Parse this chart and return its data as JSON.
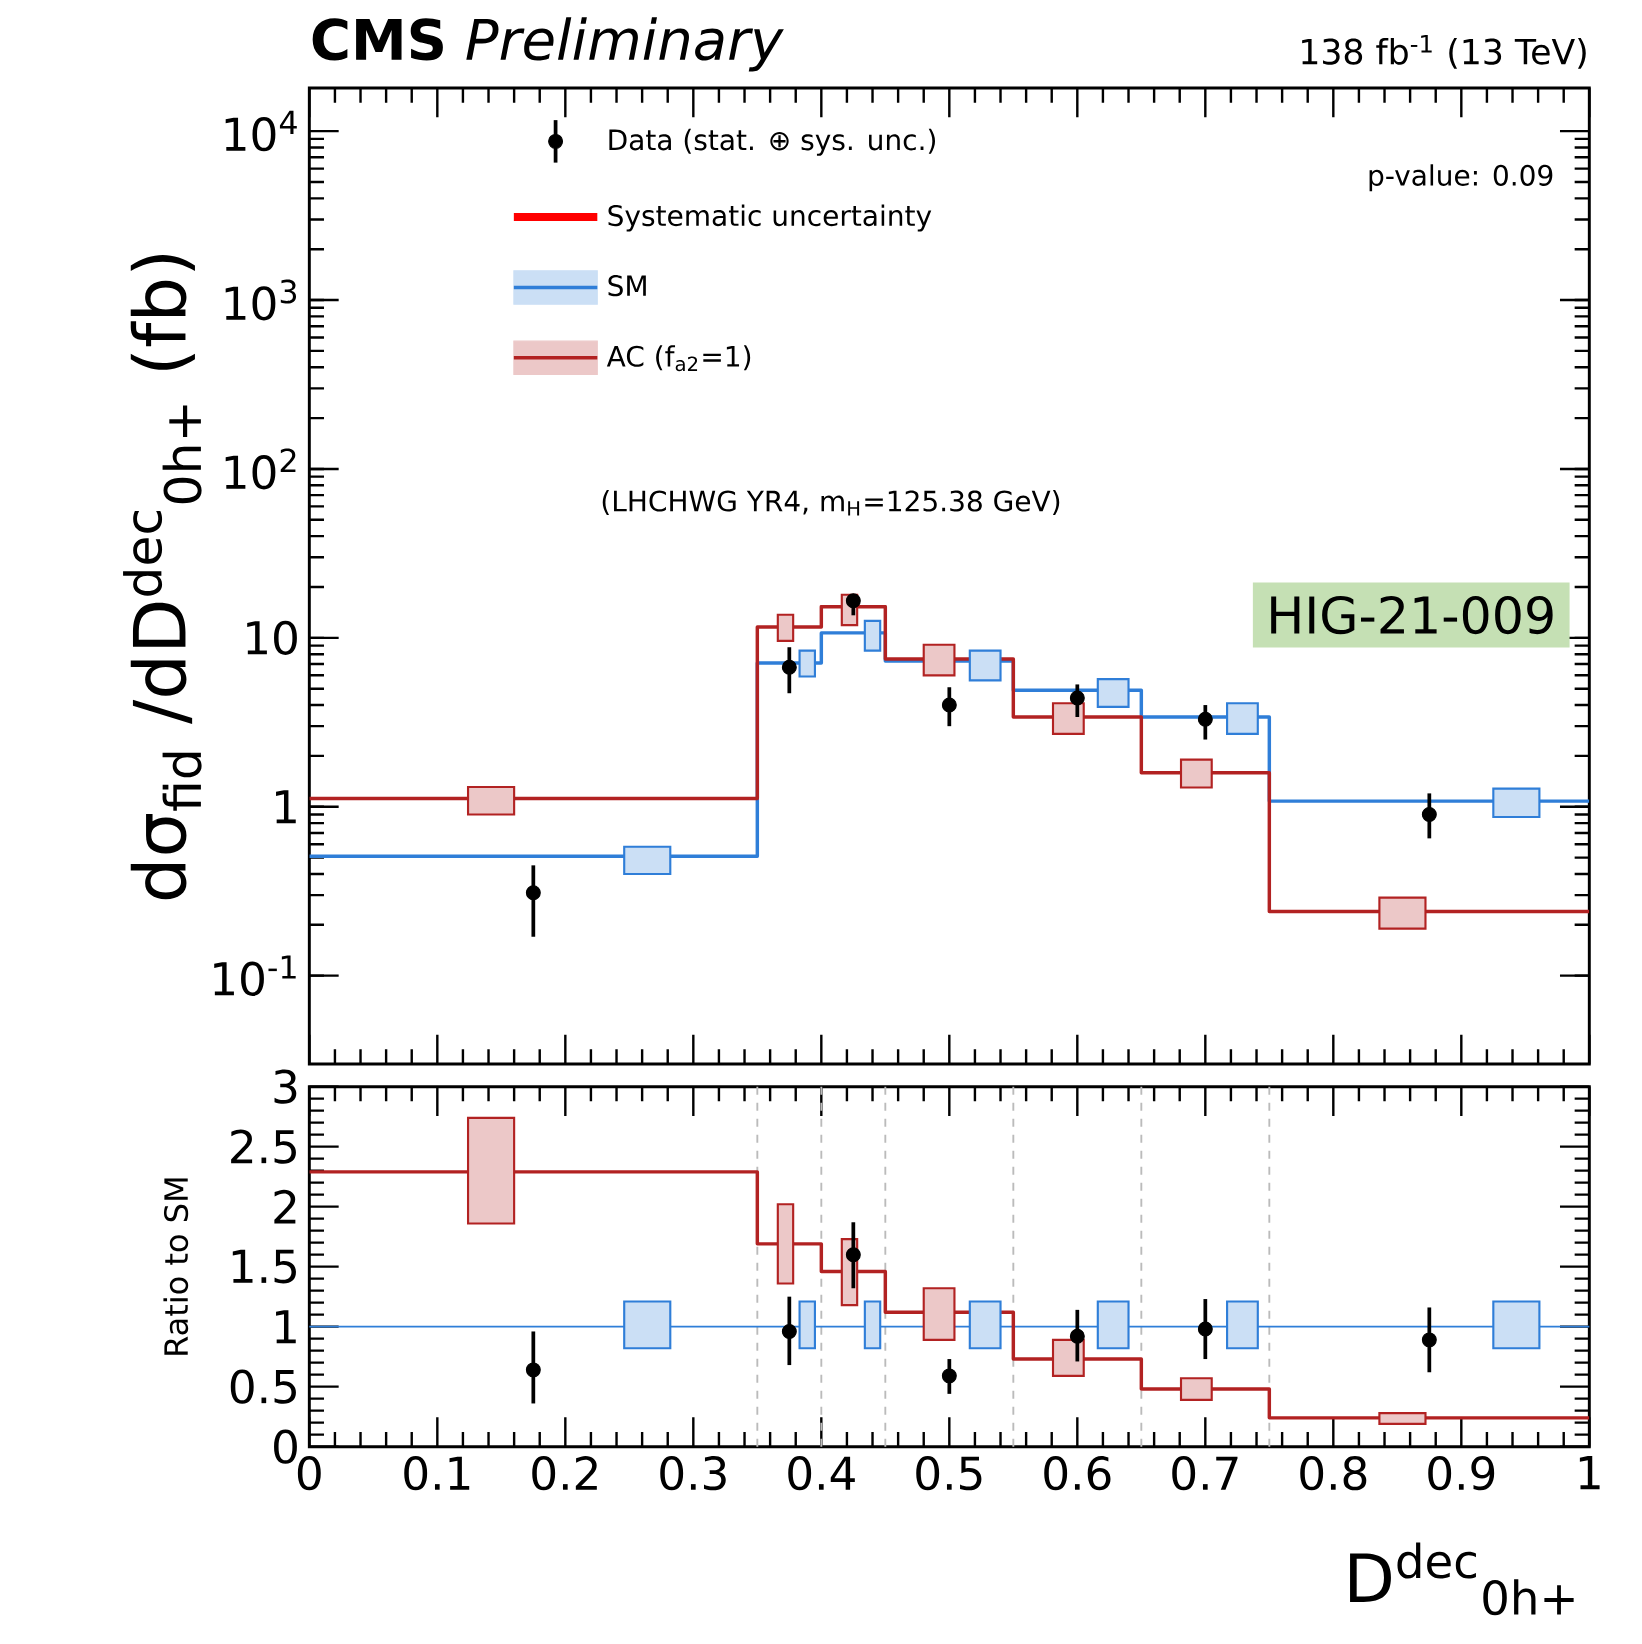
{
  "chart_data": [
    {
      "type": "step",
      "title": "**CMS** *Preliminary*",
      "subtitle": "138 fb$^{-1}$ (13 TeV)",
      "ylabel": "dσ$_{fid}$ /dD$^{dec}$$_{0h+}$ (fb)",
      "annotations": [
        "p-value: 0.09",
        "Systematic uncertainty",
        "(LHCHWG YR4, m$_{H}$=125.38 GeV)",
        "HIG-21-009"
      ],
      "log": "y",
      "legend": "top",
      "tick_labels": "y",
      "xlim": [
        0,
        1
      ],
      "xticks": [
        0,
        0.1,
        0.2,
        0.3,
        0.4,
        0.5,
        0.6,
        0.7,
        0.8,
        0.9,
        1
      ],
      "ylim": [
        0.03,
        18000
      ],
      "yticks": [
        {
          "value": 0.1,
          "label": "10$^{-1}$"
        },
        1,
        10,
        {
          "value": 100,
          "label": "10$^{2}$"
        },
        {
          "value": 1000,
          "label": "10$^{3}$"
        },
        {
          "value": 10000,
          "label": "10$^{4}$"
        }
      ],
      "series": [
        {
          "type": "scatter",
          "name": "Data (stat. ⊕ sys. unc.)",
          "color": "#000000",
          "marker": "circle",
          "x": [
            0.175,
            0.375,
            0.425,
            0.5,
            0.6,
            0.7,
            0.875
          ],
          "values": [
            0.31,
            6.7,
            16.6,
            4.0,
            4.4,
            3.3,
            0.9
          ],
          "errors": [
            [
              0.17,
              0.45
            ],
            [
              4.7,
              8.8
            ],
            [
              13.6,
              18
            ],
            [
              3.0,
              5.1
            ],
            [
              3.4,
              5.3
            ],
            [
              2.5,
              4.0
            ],
            [
              0.65,
              1.2
            ]
          ]
        },
        {
          "name": "SM",
          "color": "#2f7ed8",
          "x": [
            0,
            0.35,
            0.4,
            0.45,
            0.55,
            0.65,
            0.75,
            1
          ],
          "values": [
            0.51,
            7.1,
            10.7,
            7.3,
            4.9,
            3.4,
            1.08,
            1.08
          ]
        },
        {
          "name": "AC (f$_{a2}$=1)",
          "color": "#b22222",
          "x": [
            0,
            0.35,
            0.4,
            0.45,
            0.55,
            0.65,
            0.75,
            1
          ],
          "values": [
            1.12,
            11.6,
            15.3,
            7.5,
            3.4,
            1.59,
            0.24,
            0.24
          ]
        },
        {
          "type": "bar",
          "color": "#2f7ed8",
          "x": [
            0.264,
            0.389,
            0.44,
            0.528,
            0.628,
            0.729,
            0.943
          ],
          "base": [
            0.4,
            5.9,
            8.4,
            5.6,
            3.9,
            2.7,
            0.87
          ],
          "values": [
            0.18,
            2.5,
            4.2,
            2.8,
            1.8,
            1.4,
            0.41
          ]
        },
        {
          "type": "bar",
          "color": "#b22222",
          "x": [
            0.142,
            0.372,
            0.422,
            0.492,
            0.593,
            0.693,
            0.854
          ],
          "base": [
            0.9,
            9.6,
            11.9,
            6.0,
            2.7,
            1.3,
            0.19
          ],
          "values": [
            0.41,
            4.1,
            6.1,
            3.1,
            1.4,
            0.6,
            0.1
          ]
        }
      ]
    },
    {
      "type": "step",
      "ylabel": "Ratio to SM",
      "xlabel": "D$^{dec}$$_{0h+}$",
      "xlim": [
        0,
        1
      ],
      "xticks": [
        0,
        0.1,
        0.2,
        0.3,
        0.4,
        0.5,
        0.6,
        0.7,
        0.8,
        0.9,
        1
      ],
      "ylim": [
        0,
        3
      ],
      "yticks": [
        0,
        0.5,
        1,
        1.5,
        2,
        2.5,
        3
      ],
      "ref_lines": [
        {
          "axis": "x",
          "value": 0.35,
          "color": "#bbbbbb",
          "line_style": "dashed"
        },
        {
          "axis": "x",
          "value": 0.4,
          "color": "#bbbbbb",
          "line_style": "dashed"
        },
        {
          "axis": "x",
          "value": 0.45,
          "color": "#bbbbbb",
          "line_style": "dashed"
        },
        {
          "axis": "x",
          "value": 0.55,
          "color": "#bbbbbb",
          "line_style": "dashed"
        },
        {
          "axis": "x",
          "value": 0.65,
          "color": "#bbbbbb",
          "line_style": "dashed"
        },
        {
          "axis": "x",
          "value": 0.75,
          "color": "#bbbbbb",
          "line_style": "dashed"
        },
        {
          "axis": "y",
          "value": 1,
          "color": "#2f7ed8",
          "line_style": "solid"
        }
      ],
      "series": [
        {
          "type": "scatter",
          "color": "#000000",
          "marker": "circle",
          "x": [
            0.175,
            0.375,
            0.425,
            0.5,
            0.6,
            0.7,
            0.875
          ],
          "values": [
            0.64,
            0.96,
            1.6,
            0.59,
            0.92,
            0.98,
            0.89
          ],
          "errors": [
            [
              0.36,
              0.96
            ],
            [
              0.68,
              1.25
            ],
            [
              1.32,
              1.87
            ],
            [
              0.44,
              0.73
            ],
            [
              0.71,
              1.14
            ],
            [
              0.73,
              1.23
            ],
            [
              0.62,
              1.16
            ]
          ]
        },
        {
          "color": "#b22222",
          "x": [
            0,
            0.35,
            0.4,
            0.45,
            0.55,
            0.65,
            0.75,
            1
          ],
          "values": [
            2.29,
            1.69,
            1.46,
            1.12,
            0.73,
            0.48,
            0.24,
            0.24
          ]
        },
        {
          "type": "bar",
          "color": "#2f7ed8",
          "x": [
            0.264,
            0.389,
            0.44,
            0.528,
            0.628,
            0.729,
            0.943
          ],
          "base": [
            0.82,
            0.82,
            0.82,
            0.82,
            0.82,
            0.82,
            0.82
          ],
          "values": [
            0.39,
            0.39,
            0.39,
            0.39,
            0.39,
            0.39,
            0.39
          ]
        },
        {
          "type": "bar",
          "color": "#b22222",
          "x": [
            0.142,
            0.372,
            0.422,
            0.492,
            0.593,
            0.693,
            0.854
          ],
          "base": [
            1.86,
            1.36,
            1.18,
            0.89,
            0.59,
            0.39,
            0.19
          ],
          "values": [
            0.88,
            0.66,
            0.55,
            0.43,
            0.3,
            0.18,
            0.09
          ]
        }
      ]
    }
  ]
}
